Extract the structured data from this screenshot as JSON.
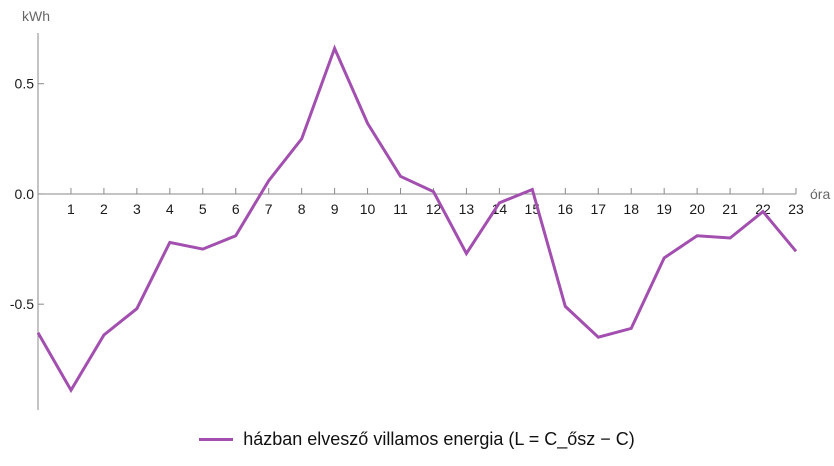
{
  "chart_data": {
    "type": "line",
    "xlabel": "óra",
    "ylabel": "kWh",
    "xlim": [
      0,
      23
    ],
    "ylim": [
      -0.98,
      0.73
    ],
    "x_ticks": [
      1,
      2,
      3,
      4,
      5,
      6,
      7,
      8,
      9,
      10,
      11,
      12,
      13,
      14,
      15,
      16,
      17,
      18,
      19,
      20,
      21,
      22,
      23
    ],
    "y_ticks": [
      -0.5,
      0.0,
      0.5
    ],
    "y_tick_labels": [
      "-0.5",
      "0.0",
      "0.5"
    ],
    "grid": false,
    "legend_position": "bottom-center",
    "series": [
      {
        "name": "házban elvesző villamos energia (L = C_ősz − C)",
        "color": "#a24faf",
        "x": [
          0,
          1,
          2,
          3,
          4,
          5,
          6,
          7,
          8,
          9,
          10,
          11,
          12,
          13,
          14,
          15,
          16,
          17,
          18,
          19,
          20,
          21,
          22,
          23
        ],
        "y": [
          -0.63,
          -0.89,
          -0.64,
          -0.52,
          -0.22,
          -0.25,
          -0.19,
          0.06,
          0.25,
          0.66,
          0.32,
          0.08,
          0.01,
          -0.27,
          -0.04,
          0.02,
          -0.51,
          -0.65,
          -0.61,
          -0.29,
          -0.19,
          -0.2,
          -0.08,
          -0.26
        ]
      }
    ]
  }
}
